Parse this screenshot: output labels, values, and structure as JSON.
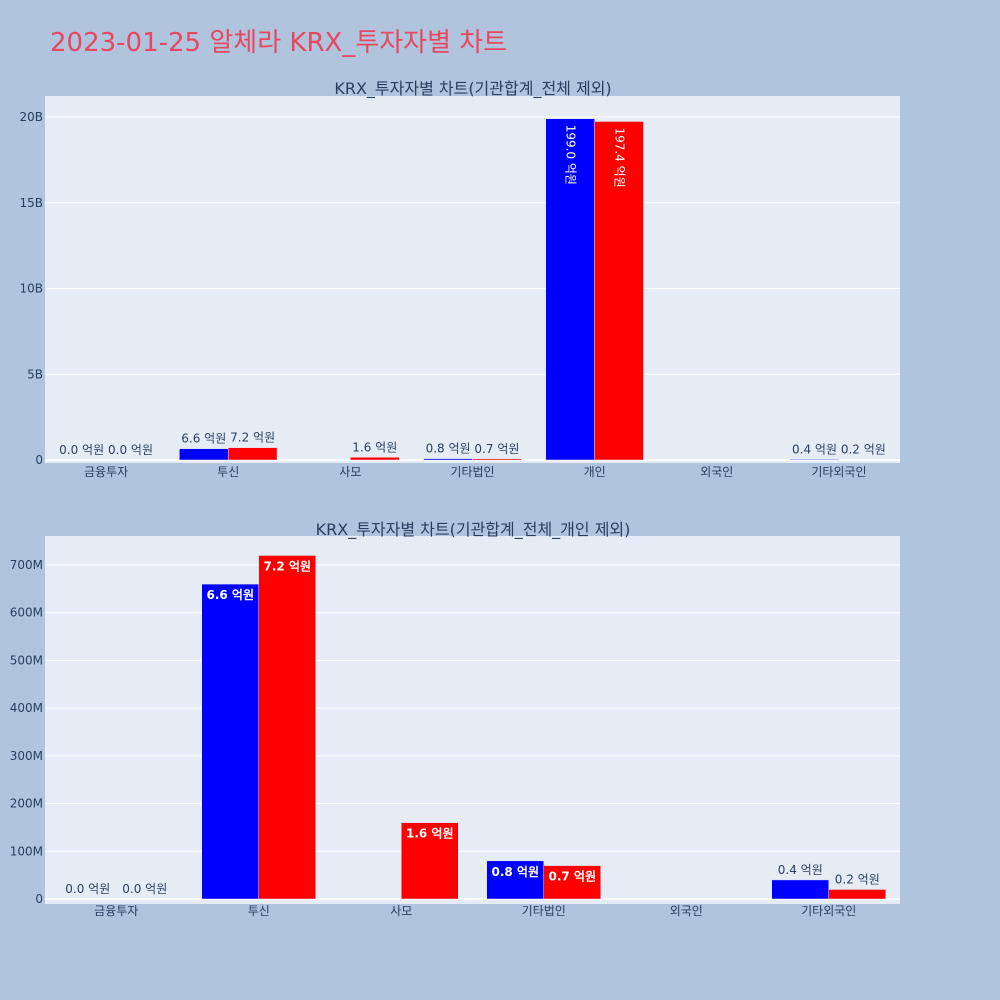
{
  "title": "2023-01-25 알체라 KRX_투자자별 차트",
  "colors": {
    "series_a": "#0000ff",
    "series_b": "#ff0000",
    "title": "#e8475f"
  },
  "chart_data": [
    {
      "type": "bar",
      "title": "KRX_투자자별 차트(기관합계_전체 제외)",
      "categories": [
        "금융투자",
        "투신",
        "사모",
        "기타법인",
        "개인",
        "외국인",
        "기타외국인"
      ],
      "yticks": [
        "0",
        "5B",
        "10B",
        "15B",
        "20B"
      ],
      "ylim": [
        0,
        21000000000
      ],
      "series": [
        {
          "color": "#0000ff",
          "values": [
            0,
            660000000,
            0,
            80000000,
            19900000000,
            0,
            40000000
          ],
          "labels": [
            "0.0 억원",
            "6.6 억원",
            "",
            "0.8 억원",
            "199.0 억원",
            "",
            "0.4 억원"
          ]
        },
        {
          "color": "#ff0000",
          "values": [
            0,
            720000000,
            160000000,
            70000000,
            19740000000,
            0,
            20000000
          ],
          "labels": [
            "0.0 억원",
            "7.2 억원",
            "1.6 억원",
            "0.7 억원",
            "197.4 억원",
            "",
            "0.2 억원"
          ]
        }
      ]
    },
    {
      "type": "bar",
      "title": "KRX_투자자별 차트(기관합계_전체_개인 제외)",
      "categories": [
        "금융투자",
        "투신",
        "사모",
        "기타법인",
        "외국인",
        "기타외국인"
      ],
      "yticks": [
        "0",
        "100M",
        "200M",
        "300M",
        "400M",
        "500M",
        "600M",
        "700M"
      ],
      "ylim": [
        0,
        760000000
      ],
      "series": [
        {
          "color": "#0000ff",
          "values": [
            0,
            660000000,
            0,
            80000000,
            0,
            40000000
          ],
          "labels": [
            "0.0 억원",
            "6.6 억원",
            "",
            "0.8 억원",
            "",
            "0.4 억원"
          ]
        },
        {
          "color": "#ff0000",
          "values": [
            0,
            720000000,
            160000000,
            70000000,
            0,
            20000000
          ],
          "labels": [
            "0.0 억원",
            "7.2 억원",
            "1.6 억원",
            "0.7 억원",
            "",
            "0.2 억원"
          ]
        }
      ]
    }
  ]
}
